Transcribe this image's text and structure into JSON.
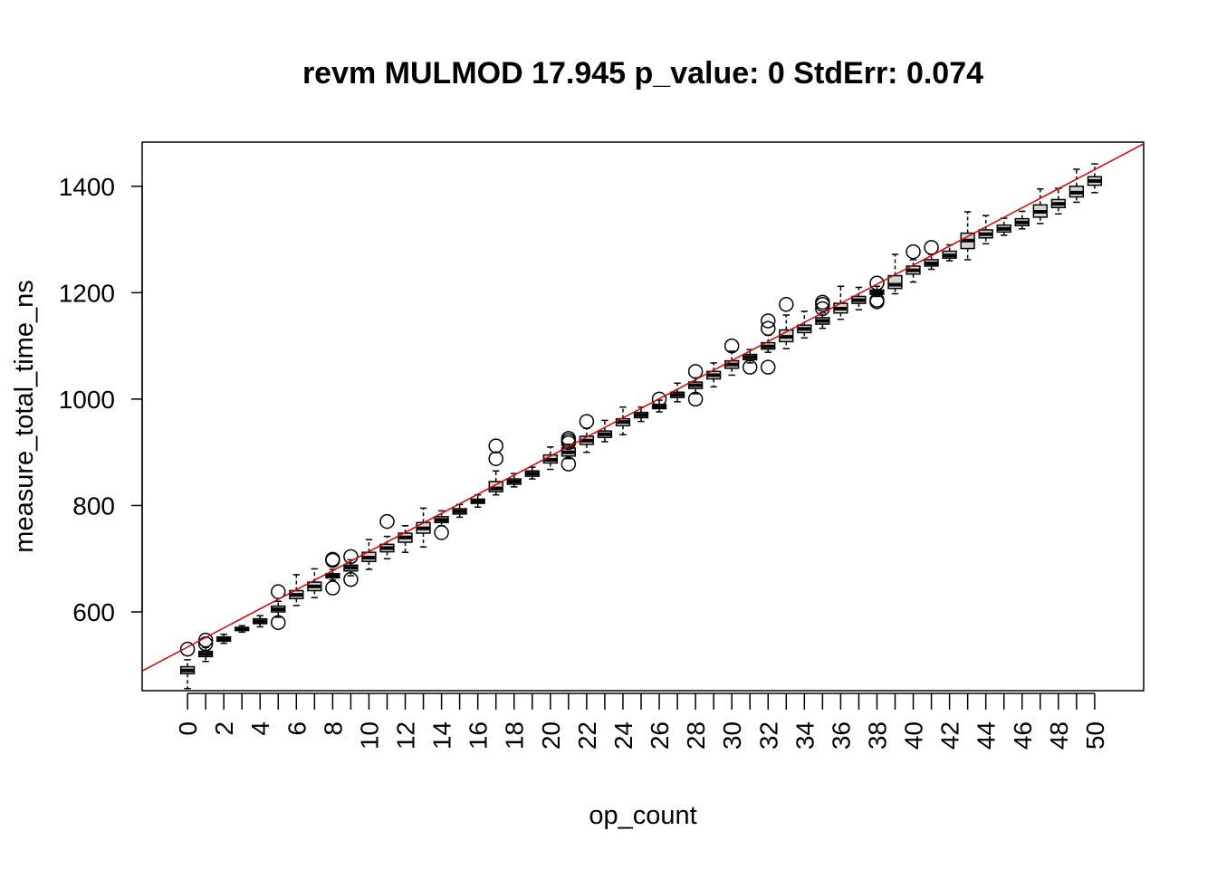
{
  "chart_data": {
    "type": "boxplot",
    "title": "revm MULMOD 17.945 p_value: 0 StdErr: 0.074",
    "xlabel": "op_count",
    "ylabel": "measure_total_time_ns",
    "categories": [
      "0",
      "1",
      "2",
      "3",
      "4",
      "5",
      "6",
      "7",
      "8",
      "9",
      "10",
      "11",
      "12",
      "13",
      "14",
      "15",
      "16",
      "17",
      "18",
      "19",
      "20",
      "21",
      "22",
      "23",
      "24",
      "25",
      "26",
      "27",
      "28",
      "29",
      "30",
      "31",
      "32",
      "33",
      "34",
      "35",
      "36",
      "37",
      "38",
      "39",
      "40",
      "41",
      "42",
      "43",
      "44",
      "45",
      "46",
      "47",
      "48",
      "49",
      "50"
    ],
    "x_tick_labels": [
      "0",
      "2",
      "4",
      "6",
      "8",
      "10",
      "12",
      "14",
      "16",
      "18",
      "20",
      "22",
      "24",
      "26",
      "28",
      "30",
      "32",
      "34",
      "36",
      "38",
      "40",
      "42",
      "44",
      "46",
      "48",
      "50"
    ],
    "y_ticks": [
      600,
      800,
      1000,
      1200,
      1400
    ],
    "ylim": [
      452,
      1483
    ],
    "xlim": [
      -2.5,
      52.7
    ],
    "fit_line": {
      "intercept": 534,
      "slope": 17.945,
      "color": "#dd0000"
    },
    "boxes": [
      {
        "x": 0,
        "min": 456,
        "q1": 484,
        "median": 490,
        "q3": 497,
        "max": 510,
        "outliers": [
          530
        ]
      },
      {
        "x": 1,
        "min": 507,
        "q1": 516,
        "median": 521,
        "q3": 526,
        "max": 533,
        "outliers": [
          540,
          547
        ]
      },
      {
        "x": 2,
        "min": 541,
        "q1": 545,
        "median": 549,
        "q3": 553,
        "max": 558,
        "outliers": []
      },
      {
        "x": 3,
        "min": 562,
        "q1": 565,
        "median": 568,
        "q3": 571,
        "max": 574,
        "outliers": []
      },
      {
        "x": 4,
        "min": 572,
        "q1": 578,
        "median": 582,
        "q3": 587,
        "max": 593,
        "outliers": []
      },
      {
        "x": 5,
        "min": 590,
        "q1": 600,
        "median": 605,
        "q3": 611,
        "max": 620,
        "outliers": [
          580,
          638
        ]
      },
      {
        "x": 6,
        "min": 612,
        "q1": 625,
        "median": 632,
        "q3": 640,
        "max": 670,
        "outliers": []
      },
      {
        "x": 7,
        "min": 627,
        "q1": 640,
        "median": 648,
        "q3": 656,
        "max": 681,
        "outliers": []
      },
      {
        "x": 8,
        "min": 660,
        "q1": 664,
        "median": 668,
        "q3": 672,
        "max": 680,
        "outliers": [
          645,
          697,
          699
        ]
      },
      {
        "x": 9,
        "min": 668,
        "q1": 677,
        "median": 683,
        "q3": 688,
        "max": 698,
        "outliers": [
          661,
          704
        ]
      },
      {
        "x": 10,
        "min": 680,
        "q1": 695,
        "median": 702,
        "q3": 712,
        "max": 736,
        "outliers": []
      },
      {
        "x": 11,
        "min": 700,
        "q1": 713,
        "median": 720,
        "q3": 727,
        "max": 742,
        "outliers": [
          770
        ]
      },
      {
        "x": 12,
        "min": 712,
        "q1": 731,
        "median": 740,
        "q3": 748,
        "max": 762,
        "outliers": []
      },
      {
        "x": 13,
        "min": 722,
        "q1": 748,
        "median": 757,
        "q3": 768,
        "max": 795,
        "outliers": []
      },
      {
        "x": 14,
        "min": 762,
        "q1": 768,
        "median": 773,
        "q3": 779,
        "max": 790,
        "outliers": [
          749
        ]
      },
      {
        "x": 15,
        "min": 778,
        "q1": 784,
        "median": 789,
        "q3": 794,
        "max": 802,
        "outliers": []
      },
      {
        "x": 16,
        "min": 797,
        "q1": 804,
        "median": 808,
        "q3": 812,
        "max": 820,
        "outliers": []
      },
      {
        "x": 17,
        "min": 820,
        "q1": 826,
        "median": 832,
        "q3": 845,
        "max": 865,
        "outliers": [
          888,
          912
        ]
      },
      {
        "x": 18,
        "min": 835,
        "q1": 840,
        "median": 845,
        "q3": 850,
        "max": 860,
        "outliers": []
      },
      {
        "x": 19,
        "min": 850,
        "q1": 855,
        "median": 860,
        "q3": 865,
        "max": 872,
        "outliers": []
      },
      {
        "x": 20,
        "min": 868,
        "q1": 880,
        "median": 886,
        "q3": 895,
        "max": 910,
        "outliers": []
      },
      {
        "x": 21,
        "min": 888,
        "q1": 893,
        "median": 900,
        "q3": 908,
        "max": 915,
        "outliers": [
          878,
          918,
          922,
          926
        ]
      },
      {
        "x": 22,
        "min": 900,
        "q1": 915,
        "median": 922,
        "q3": 930,
        "max": 945,
        "outliers": [
          958
        ]
      },
      {
        "x": 23,
        "min": 920,
        "q1": 928,
        "median": 934,
        "q3": 940,
        "max": 960,
        "outliers": []
      },
      {
        "x": 24,
        "min": 933,
        "q1": 950,
        "median": 957,
        "q3": 963,
        "max": 985,
        "outliers": []
      },
      {
        "x": 25,
        "min": 958,
        "q1": 965,
        "median": 970,
        "q3": 975,
        "max": 985,
        "outliers": []
      },
      {
        "x": 26,
        "min": 976,
        "q1": 982,
        "median": 986,
        "q3": 990,
        "max": 998,
        "outliers": [
          1000
        ]
      },
      {
        "x": 27,
        "min": 995,
        "q1": 1003,
        "median": 1008,
        "q3": 1013,
        "max": 1030,
        "outliers": []
      },
      {
        "x": 28,
        "min": 1010,
        "q1": 1020,
        "median": 1026,
        "q3": 1032,
        "max": 1040,
        "outliers": [
          1000,
          1052
        ]
      },
      {
        "x": 29,
        "min": 1023,
        "q1": 1038,
        "median": 1045,
        "q3": 1052,
        "max": 1068,
        "outliers": []
      },
      {
        "x": 30,
        "min": 1045,
        "q1": 1058,
        "median": 1065,
        "q3": 1072,
        "max": 1090,
        "outliers": [
          1100
        ]
      },
      {
        "x": 31,
        "min": 1068,
        "q1": 1074,
        "median": 1079,
        "q3": 1084,
        "max": 1093,
        "outliers": [
          1060
        ]
      },
      {
        "x": 32,
        "min": 1088,
        "q1": 1094,
        "median": 1099,
        "q3": 1106,
        "max": 1120,
        "outliers": [
          1060,
          1133,
          1147
        ]
      },
      {
        "x": 33,
        "min": 1095,
        "q1": 1108,
        "median": 1117,
        "q3": 1130,
        "max": 1158,
        "outliers": [
          1178
        ]
      },
      {
        "x": 34,
        "min": 1115,
        "q1": 1125,
        "median": 1132,
        "q3": 1139,
        "max": 1165,
        "outliers": []
      },
      {
        "x": 35,
        "min": 1133,
        "q1": 1141,
        "median": 1147,
        "q3": 1153,
        "max": 1162,
        "outliers": [
          1170,
          1178,
          1182
        ]
      },
      {
        "x": 36,
        "min": 1150,
        "q1": 1162,
        "median": 1170,
        "q3": 1180,
        "max": 1212,
        "outliers": []
      },
      {
        "x": 37,
        "min": 1168,
        "q1": 1180,
        "median": 1186,
        "q3": 1193,
        "max": 1210,
        "outliers": []
      },
      {
        "x": 38,
        "min": 1193,
        "q1": 1197,
        "median": 1201,
        "q3": 1205,
        "max": 1212,
        "outliers": [
          1183,
          1186,
          1218
        ]
      },
      {
        "x": 39,
        "min": 1198,
        "q1": 1208,
        "median": 1215,
        "q3": 1232,
        "max": 1272,
        "outliers": []
      },
      {
        "x": 40,
        "min": 1220,
        "q1": 1235,
        "median": 1242,
        "q3": 1250,
        "max": 1262,
        "outliers": [
          1277
        ]
      },
      {
        "x": 41,
        "min": 1244,
        "q1": 1250,
        "median": 1255,
        "q3": 1262,
        "max": 1272,
        "outliers": [
          1285
        ]
      },
      {
        "x": 42,
        "min": 1260,
        "q1": 1265,
        "median": 1270,
        "q3": 1278,
        "max": 1290,
        "outliers": []
      },
      {
        "x": 43,
        "min": 1262,
        "q1": 1283,
        "median": 1298,
        "q3": 1312,
        "max": 1352,
        "outliers": []
      },
      {
        "x": 44,
        "min": 1292,
        "q1": 1303,
        "median": 1310,
        "q3": 1318,
        "max": 1345,
        "outliers": []
      },
      {
        "x": 45,
        "min": 1308,
        "q1": 1314,
        "median": 1320,
        "q3": 1327,
        "max": 1340,
        "outliers": []
      },
      {
        "x": 46,
        "min": 1320,
        "q1": 1326,
        "median": 1332,
        "q3": 1339,
        "max": 1353,
        "outliers": []
      },
      {
        "x": 47,
        "min": 1330,
        "q1": 1342,
        "median": 1352,
        "q3": 1365,
        "max": 1395,
        "outliers": []
      },
      {
        "x": 48,
        "min": 1348,
        "q1": 1360,
        "median": 1367,
        "q3": 1375,
        "max": 1396,
        "outliers": []
      },
      {
        "x": 49,
        "min": 1370,
        "q1": 1380,
        "median": 1388,
        "q3": 1400,
        "max": 1432,
        "outliers": []
      },
      {
        "x": 50,
        "min": 1388,
        "q1": 1402,
        "median": 1410,
        "q3": 1418,
        "max": 1442,
        "outliers": []
      }
    ],
    "grid": false,
    "box_fill": "#d3d3d3",
    "legend": "none"
  }
}
